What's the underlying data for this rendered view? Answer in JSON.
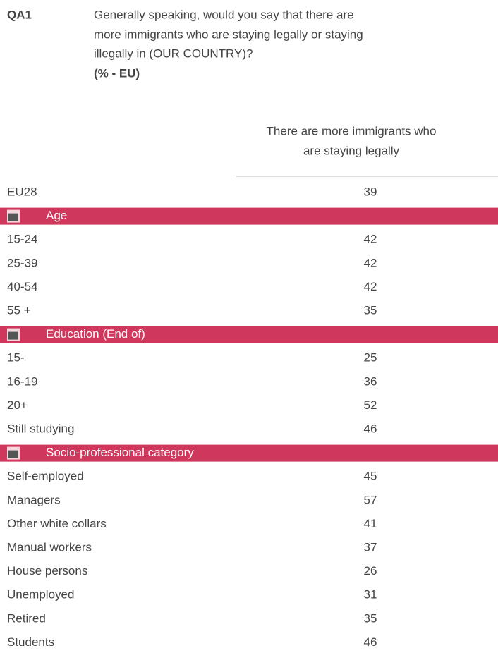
{
  "question": {
    "code": "QA1",
    "lines": [
      "Generally speaking, would you say that there are",
      "more immigrants who are staying legally or staying",
      "illegally in (OUR COUNTRY)?"
    ],
    "base": "(% - EU)"
  },
  "column_header": [
    "There are more immigrants who",
    "are staying legally"
  ],
  "table": {
    "total": {
      "label": "EU28",
      "value": 39
    },
    "sections": [
      {
        "title": "Age",
        "rows": [
          {
            "label": "15-24",
            "value": 42
          },
          {
            "label": "25-39",
            "value": 42
          },
          {
            "label": "40-54",
            "value": 42
          },
          {
            "label": "55 +",
            "value": 35
          }
        ]
      },
      {
        "title": "Education (End of)",
        "rows": [
          {
            "label": "15-",
            "value": 25
          },
          {
            "label": "16-19",
            "value": 36
          },
          {
            "label": "20+",
            "value": 52
          },
          {
            "label": "Still studying",
            "value": 46
          }
        ]
      },
      {
        "title": "Socio-professional category",
        "rows": [
          {
            "label": "Self-employed",
            "value": 45
          },
          {
            "label": "Managers",
            "value": 57
          },
          {
            "label": "Other white collars",
            "value": 41
          },
          {
            "label": "Manual workers",
            "value": 37
          },
          {
            "label": "House persons",
            "value": 26
          },
          {
            "label": "Unemployed",
            "value": 31
          },
          {
            "label": "Retired",
            "value": 35
          },
          {
            "label": "Students",
            "value": 46
          }
        ]
      }
    ]
  }
}
